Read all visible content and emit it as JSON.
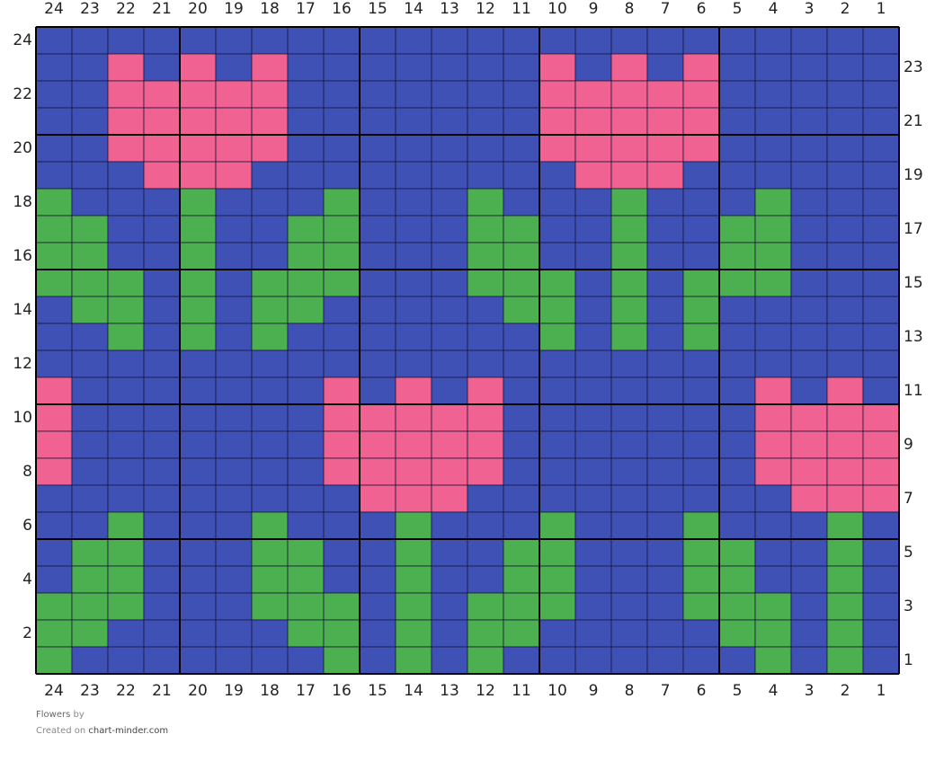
{
  "grid": {
    "title": "Flowers",
    "column_numbers": [
      24,
      23,
      22,
      21,
      20,
      19,
      18,
      17,
      16,
      15,
      14,
      13,
      12,
      11,
      10,
      9,
      8,
      7,
      6,
      5,
      4,
      3,
      2,
      1
    ],
    "row_numbers": [
      24,
      23,
      22,
      21,
      20,
      19,
      18,
      17,
      16,
      15,
      14,
      13,
      12,
      11,
      10,
      9,
      8,
      7,
      6,
      5,
      4,
      3,
      2,
      1
    ],
    "palette": {
      "B": "#3f51b5",
      "P": "#f06292",
      "G": "#4caf50"
    },
    "rows": [
      "BBBBBBBBBBBBBBBBBBBBBBBB",
      "BBPBPBPBBBBBBBPBPBPBBBBB",
      "BBPPPPPBBBBBBBPPPPPBBBBB",
      "BBPPPPPBBBBBBBPPPPPBBBBB",
      "BBPPPPPBBBBBBBPPPPPBBBBB",
      "BBBPPPBBBBBBBBBPPPBBBBBB",
      "GBBBGBBBGBBBGBBBGBBBGBBB",
      "GGBBGBBGGBBBGGBBGBBGGBBB",
      "GGBBGBBGGBBBGGBBGBBGGBBB",
      "GGGBGBGGGBBBGGGBGBGGGBBB",
      "BGGBGBGGBBBBBGGBGBGBBBBB",
      "BBGBGBGBBBBBBBGBGBGBBBBB",
      "BBBBBBBBBBBBBBBBBBBBBBBB",
      "PBBBBBBBPBPBPBBBBBBBPBPB",
      "PBBBBBBBPPPPPBBBBBBBPPPP",
      "PBBBBBBBPPPPPBBBBBBBPPPP",
      "PBBBBBBBPPPPPBBBBBBBPPPP",
      "BBBBBBBBBPPPBBBBBBBBBPPP",
      "BBGBBBGBBBGBBBGBBBGBBBGB",
      "BGGBBBGGBBGBBGGBBBGGBBGB",
      "BGGBBBGGBBGBBGGBBBGGBBGB",
      "GGGBBBGGGBGBGGGBBBGGGBGB",
      "GGBBBBBGGBGBGGBBBBBGGBGB",
      "GBBBBBBBGBGBGBBBBBBBGBGB"
    ]
  },
  "footer": {
    "by": "by",
    "created": "Created on",
    "site": "chart-minder.com"
  }
}
